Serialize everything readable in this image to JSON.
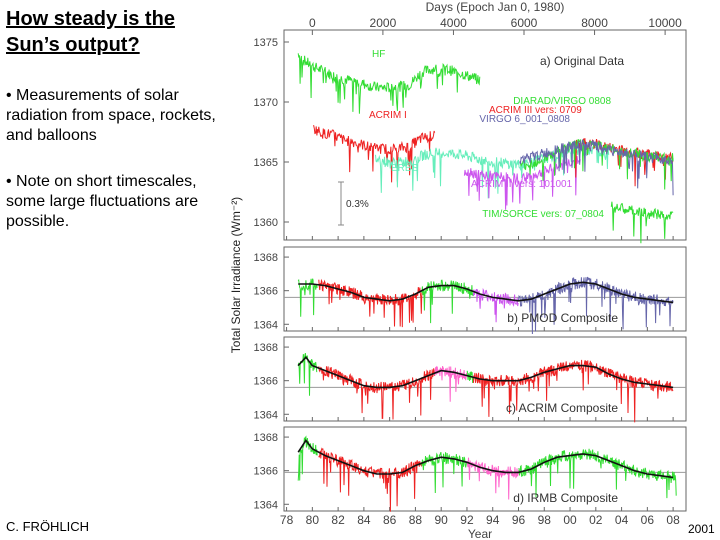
{
  "slide": {
    "title": "How steady is the Sun’s output?",
    "bullets": [
      "• Measurements of solar radiation from space, rockets, and balloons",
      "• Note on short timescales, some large fluctuations are possible."
    ],
    "credit": "C. FRÖHLICH",
    "year": "2001"
  },
  "chart_data": {
    "type": "line",
    "top_axis_label": "Days (Epoch Jan 0, 1980)",
    "top_ticks": [
      "0",
      "2000",
      "4000",
      "6000",
      "8000",
      "10000"
    ],
    "top_tick_values": [
      0,
      2000,
      4000,
      6000,
      8000,
      10000
    ],
    "xlabel": "Year",
    "x_ticks": [
      "78",
      "80",
      "82",
      "84",
      "86",
      "88",
      "90",
      "92",
      "94",
      "96",
      "98",
      "00",
      "02",
      "04",
      "06",
      "08"
    ],
    "x_tick_values": [
      1978,
      1980,
      1982,
      1984,
      1986,
      1988,
      1990,
      1992,
      1994,
      1996,
      1998,
      2000,
      2002,
      2004,
      2006,
      2008
    ],
    "xlim": [
      1977.8,
      2009.0
    ],
    "ylabel": "Total Solar Irradiance (Wm⁻²)",
    "panels": [
      {
        "id": "a",
        "label": "a) Original Data",
        "ylim": [
          1358.5,
          1376
        ],
        "y_ticks": [
          1375,
          1370,
          1365,
          1360
        ],
        "scale_bar": "0.3%",
        "series": [
          {
            "name": "HF",
            "color": "#33dd33",
            "x": [
              1978.9,
              1979.3,
              1980.0,
              1981.0,
              1982.0,
              1983.0,
              1984.0,
              1985.0,
              1986.0,
              1987.5,
              1988.5,
              1989.5,
              1990.5,
              1991.5,
              1992.5,
              1993.0
            ],
            "y": [
              1374.0,
              1373.5,
              1373.0,
              1372.5,
              1372.0,
              1371.8,
              1371.5,
              1371.2,
              1371.2,
              1371.4,
              1372.5,
              1372.8,
              1372.7,
              1372.4,
              1372.0,
              1371.8
            ]
          },
          {
            "name": "ACRIM I",
            "color": "#ee2222",
            "x": [
              1980.1,
              1980.8,
              1981.5,
              1982.5,
              1983.5,
              1984.5,
              1985.5,
              1986.5,
              1987.5,
              1988.5,
              1989.5
            ],
            "y": [
              1367.8,
              1367.4,
              1367.3,
              1366.8,
              1366.6,
              1366.2,
              1366.1,
              1366.1,
              1366.3,
              1367.0,
              1367.2
            ]
          },
          {
            "name": "ERBS",
            "color": "#66eebb",
            "x": [
              1984.9,
              1986.0,
              1987.0,
              1988.0,
              1989.0,
              1990.0,
              1991.0,
              1992.0,
              1993.0,
              1994.0,
              1995.0,
              1996.0,
              1997.0,
              1998.0,
              1999.0,
              2000.0,
              2001.0,
              2002.0,
              2003.0
            ],
            "y": [
              1365.3,
              1364.9,
              1365.0,
              1365.3,
              1365.7,
              1365.8,
              1365.7,
              1365.5,
              1365.2,
              1365.0,
              1364.9,
              1364.8,
              1365.0,
              1365.3,
              1365.6,
              1365.9,
              1366.0,
              1366.0,
              1365.8
            ]
          },
          {
            "name": "ACRIM II vers: 101001",
            "color": "#cc55ee",
            "x": [
              1991.8,
              1993.0,
              1994.0,
              1995.0,
              1996.0,
              1997.0,
              1998.0,
              1999.0,
              2000.0,
              2000.8
            ],
            "y": [
              1364.3,
              1364.0,
              1363.8,
              1363.7,
              1363.6,
              1363.8,
              1364.2,
              1364.6,
              1365.0,
              1365.1
            ]
          },
          {
            "name": "ACRIM III vers: 0709",
            "color": "#ee2222",
            "x": [
              2000.3,
              2001.0,
              2002.0,
              2003.0,
              2004.0,
              2005.0,
              2006.0,
              2007.0,
              2008.0
            ],
            "y": [
              1366.4,
              1366.6,
              1366.5,
              1366.2,
              1366.0,
              1365.8,
              1365.6,
              1365.5,
              1365.4
            ]
          },
          {
            "name": "DIARAD/VIRGO 0808",
            "color": "#33dd33",
            "x": [
              1996.1,
              1997.0,
              1998.0,
              1999.0,
              2000.0,
              2001.0,
              2002.0,
              2003.0,
              2004.0,
              2005.0,
              2006.0,
              2007.0,
              2008.0
            ],
            "y": [
              1364.7,
              1364.9,
              1365.3,
              1365.8,
              1366.3,
              1366.5,
              1366.4,
              1366.1,
              1365.9,
              1365.7,
              1365.5,
              1365.4,
              1365.4
            ]
          },
          {
            "name": "VIRGO 6_001_0808",
            "color": "#6666aa",
            "x": [
              1996.1,
              1997.0,
              1998.0,
              1999.0,
              2000.0,
              2001.0,
              2002.0,
              2003.0,
              2004.0,
              2005.0,
              2006.0,
              2007.0,
              2008.0
            ],
            "y": [
              1365.2,
              1365.4,
              1365.7,
              1366.0,
              1366.3,
              1366.4,
              1366.3,
              1366.0,
              1365.8,
              1365.6,
              1365.4,
              1365.3,
              1365.2
            ]
          },
          {
            "name": "TIM/SORCE vers: 07_0804",
            "color": "#33dd33",
            "x": [
              2003.2,
              2004.0,
              2005.0,
              2006.0,
              2007.0,
              2008.0
            ],
            "y": [
              1361.3,
              1361.1,
              1360.9,
              1360.7,
              1360.6,
              1360.5
            ]
          }
        ]
      },
      {
        "id": "b",
        "label": "b) PMOD Composite",
        "ylim": [
          1363.6,
          1368.6
        ],
        "y_ticks": [
          1368,
          1366,
          1364
        ],
        "reference": 1365.6,
        "segments": [
          {
            "color": "#33dd33",
            "x": [
              1978.9,
              1980.0,
              1980.5
            ]
          },
          {
            "color": "#ee2222",
            "x": [
              1980.5,
              1988.5
            ]
          },
          {
            "color": "#33dd33",
            "x": [
              1988.5,
              1992.5
            ]
          },
          {
            "color": "#cc55ee",
            "x": [
              1992.5,
              1996.0
            ]
          },
          {
            "color": "#6666aa",
            "x": [
              1996.0,
              2008.2
            ]
          }
        ],
        "smooth": {
          "x": [
            1978.9,
            1980.0,
            1981.0,
            1982.0,
            1983.0,
            1984.0,
            1985.0,
            1986.0,
            1987.0,
            1988.0,
            1989.0,
            1990.0,
            1991.0,
            1992.0,
            1993.0,
            1994.0,
            1995.0,
            1996.0,
            1997.0,
            1998.0,
            1999.0,
            2000.0,
            2001.0,
            2002.0,
            2003.0,
            2004.0,
            2005.0,
            2006.0,
            2007.0,
            2008.0
          ],
          "y": [
            1366.4,
            1366.4,
            1366.3,
            1366.1,
            1365.9,
            1365.6,
            1365.5,
            1365.4,
            1365.5,
            1365.8,
            1366.2,
            1366.3,
            1366.3,
            1366.1,
            1365.8,
            1365.6,
            1365.5,
            1365.4,
            1365.5,
            1365.8,
            1366.1,
            1366.4,
            1366.5,
            1366.4,
            1366.1,
            1365.8,
            1365.6,
            1365.5,
            1365.4,
            1365.3
          ]
        }
      },
      {
        "id": "c",
        "label": "c) ACRIM Composite",
        "ylim": [
          1363.6,
          1368.6
        ],
        "y_ticks": [
          1368,
          1366,
          1364
        ],
        "reference": 1365.6,
        "segments": [
          {
            "color": "#33dd33",
            "x": [
              1978.9,
              1980.5
            ]
          },
          {
            "color": "#ee2222",
            "x": [
              1980.5,
              1989.5
            ]
          },
          {
            "color": "#ff66cc",
            "x": [
              1989.5,
              1992.0
            ]
          },
          {
            "color": "#33dd33",
            "x": [
              1992.0,
              1992.5
            ]
          },
          {
            "color": "#ee2222",
            "x": [
              1992.5,
              2008.0
            ]
          }
        ],
        "smooth": {
          "x": [
            1978.9,
            1979.5,
            1980.0,
            1981.0,
            1982.0,
            1983.0,
            1984.0,
            1985.0,
            1986.0,
            1987.0,
            1988.0,
            1989.0,
            1990.0,
            1991.0,
            1992.0,
            1993.0,
            1994.0,
            1995.0,
            1996.0,
            1997.0,
            1998.0,
            1999.0,
            2000.0,
            2001.0,
            2002.0,
            2003.0,
            2004.0,
            2005.0,
            2006.0,
            2007.0,
            2008.0
          ],
          "y": [
            1366.9,
            1367.4,
            1366.9,
            1366.6,
            1366.3,
            1366.0,
            1365.7,
            1365.6,
            1365.6,
            1365.7,
            1366.0,
            1366.3,
            1366.6,
            1366.5,
            1366.3,
            1366.1,
            1366.0,
            1366.0,
            1366.0,
            1366.2,
            1366.5,
            1366.7,
            1366.9,
            1366.9,
            1366.8,
            1366.4,
            1366.1,
            1365.9,
            1365.8,
            1365.7,
            1365.6
          ]
        }
      },
      {
        "id": "d",
        "label": "d) IRMB Composite",
        "ylim": [
          1363.6,
          1368.6
        ],
        "y_ticks": [
          1368,
          1366,
          1364
        ],
        "reference": 1365.9,
        "segments": [
          {
            "color": "#33dd33",
            "x": [
              1978.9,
              1980.5
            ]
          },
          {
            "color": "#ee2222",
            "x": [
              1980.5,
              1988.5
            ]
          },
          {
            "color": "#33dd33",
            "x": [
              1988.5,
              1992.0
            ]
          },
          {
            "color": "#ff66cc",
            "x": [
              1992.0,
              1996.0
            ]
          },
          {
            "color": "#33dd33",
            "x": [
              1996.0,
              2008.3
            ]
          }
        ],
        "smooth": {
          "x": [
            1978.9,
            1979.5,
            1980.0,
            1981.0,
            1982.0,
            1983.0,
            1984.0,
            1985.0,
            1986.0,
            1987.0,
            1988.0,
            1989.0,
            1990.0,
            1991.0,
            1992.0,
            1993.0,
            1994.0,
            1995.0,
            1996.0,
            1997.0,
            1998.0,
            1999.0,
            2000.0,
            2001.0,
            2002.0,
            2003.0,
            2004.0,
            2005.0,
            2006.0,
            2007.0,
            2008.0
          ],
          "y": [
            1367.1,
            1367.8,
            1367.3,
            1366.9,
            1366.6,
            1366.3,
            1366.0,
            1365.8,
            1365.8,
            1365.9,
            1366.3,
            1366.6,
            1366.8,
            1366.7,
            1366.5,
            1366.2,
            1366.0,
            1365.9,
            1365.9,
            1366.1,
            1366.5,
            1366.8,
            1366.9,
            1367.0,
            1366.9,
            1366.6,
            1366.3,
            1366.0,
            1365.8,
            1365.7,
            1365.6
          ]
        }
      }
    ]
  }
}
